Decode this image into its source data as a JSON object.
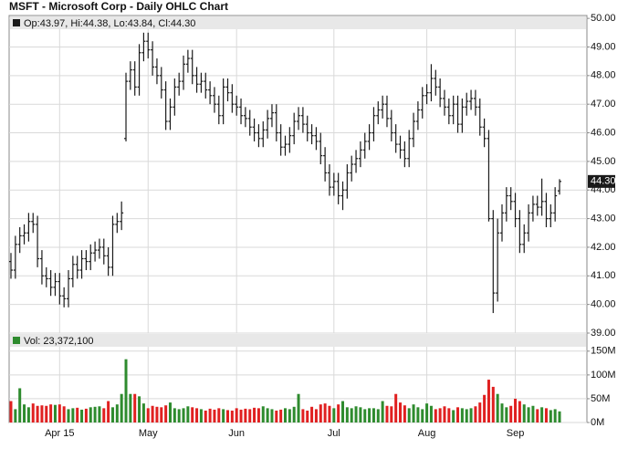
{
  "chart_data": {
    "type": "ohlc",
    "title": "MSFT - Microsoft Corp - Daily OHLC Chart",
    "info": "Op:43.97, Hi:44.38, Lo:43.84, Cl:44.30",
    "volume_info": "Vol: 23,372,100",
    "last_label": "44.30",
    "color": "#1a1a1a",
    "up_color": "#2e8b2e",
    "down_color": "#e02020",
    "grid": true,
    "categories": [
      null,
      null,
      null,
      null,
      null,
      null,
      null,
      null,
      null,
      null,
      null,
      "Apr 15",
      null,
      null,
      null,
      null,
      null,
      null,
      null,
      null,
      null,
      null,
      null,
      null,
      null,
      null,
      null,
      null,
      null,
      null,
      null,
      "May",
      null,
      null,
      null,
      null,
      null,
      null,
      null,
      null,
      null,
      null,
      null,
      null,
      null,
      null,
      null,
      null,
      null,
      null,
      null,
      "Jun",
      null,
      null,
      null,
      null,
      null,
      null,
      null,
      null,
      null,
      null,
      null,
      null,
      null,
      null,
      null,
      null,
      null,
      null,
      null,
      null,
      null,
      "Jul",
      null,
      null,
      null,
      null,
      null,
      null,
      null,
      null,
      null,
      null,
      null,
      null,
      null,
      null,
      null,
      null,
      null,
      null,
      null,
      null,
      "Aug",
      null,
      null,
      null,
      null,
      null,
      null,
      null,
      null,
      null,
      null,
      null,
      null,
      null,
      null,
      null,
      null,
      null,
      null,
      null,
      "Sep",
      null,
      null,
      null,
      null,
      null,
      null,
      null,
      null,
      null,
      null
    ],
    "open": [
      41.5,
      41.2,
      42.1,
      42.4,
      42.5,
      42.9,
      42.8,
      41.6,
      41.0,
      40.9,
      40.6,
      40.8,
      40.3,
      40.2,
      40.9,
      41.4,
      41.2,
      41.6,
      41.5,
      41.8,
      41.9,
      42.0,
      41.7,
      41.3,
      42.8,
      42.9,
      45.8,
      47.8,
      48.2,
      47.6,
      48.8,
      49.2,
      48.9,
      48.3,
      48.0,
      47.5,
      46.4,
      46.9,
      47.6,
      47.8,
      48.4,
      48.6,
      48.0,
      47.7,
      47.8,
      47.5,
      47.3,
      47.0,
      46.6,
      47.6,
      47.4,
      47.0,
      46.9,
      46.6,
      46.5,
      46.2,
      46.0,
      45.8,
      46.1,
      46.5,
      46.7,
      46.0,
      45.5,
      45.6,
      45.9,
      46.4,
      46.6,
      46.3,
      46.0,
      45.9,
      45.7,
      45.2,
      44.6,
      44.1,
      44.3,
      43.8,
      44.0,
      44.6,
      44.9,
      45.1,
      45.4,
      45.7,
      46.0,
      46.6,
      46.8,
      47.0,
      46.5,
      46.0,
      45.6,
      45.4,
      45.1,
      45.8,
      46.4,
      46.8,
      47.3,
      47.4,
      47.9,
      47.6,
      47.2,
      46.9,
      46.6,
      47.0,
      46.3,
      46.9,
      47.1,
      47.2,
      46.9,
      46.2,
      45.8,
      43.0,
      40.4,
      42.5,
      43.2,
      43.8,
      43.6,
      43.0,
      42.1,
      42.5,
      43.2,
      43.5,
      43.4,
      43.6,
      43.0,
      43.2,
      43.97
    ],
    "high": [
      41.8,
      42.4,
      42.7,
      42.8,
      43.2,
      43.2,
      43.1,
      41.9,
      41.3,
      41.2,
      41.1,
      41.1,
      40.6,
      41.2,
      41.7,
      41.7,
      41.9,
      41.9,
      42.1,
      42.2,
      42.3,
      42.3,
      42.0,
      43.1,
      43.2,
      43.6,
      48.1,
      48.5,
      48.5,
      49.1,
      49.5,
      49.5,
      49.2,
      48.6,
      48.3,
      47.8,
      47.2,
      47.9,
      48.1,
      48.7,
      48.9,
      48.9,
      48.3,
      48.1,
      48.1,
      47.8,
      47.6,
      47.3,
      47.9,
      47.9,
      47.7,
      47.3,
      47.2,
      46.9,
      46.8,
      46.5,
      46.3,
      46.4,
      46.8,
      47.0,
      47.0,
      46.3,
      45.9,
      46.2,
      46.7,
      46.9,
      46.9,
      46.6,
      46.3,
      46.2,
      46.0,
      45.5,
      44.9,
      44.6,
      44.6,
      44.3,
      44.9,
      45.2,
      45.4,
      45.7,
      46.0,
      46.3,
      46.9,
      47.1,
      47.3,
      47.3,
      46.8,
      46.3,
      45.9,
      45.7,
      46.1,
      46.7,
      47.1,
      47.6,
      47.7,
      48.4,
      48.2,
      47.9,
      47.5,
      47.2,
      47.3,
      47.3,
      47.2,
      47.4,
      47.5,
      47.5,
      47.2,
      46.5,
      46.1,
      43.3,
      43.0,
      43.5,
      44.1,
      44.1,
      43.9,
      43.3,
      42.8,
      43.5,
      43.8,
      43.8,
      44.4,
      43.9,
      43.5,
      44.1,
      44.38
    ],
    "low": [
      40.9,
      40.9,
      41.8,
      42.1,
      42.2,
      42.5,
      41.3,
      40.7,
      40.6,
      40.3,
      40.3,
      40.0,
      39.9,
      39.9,
      40.6,
      40.9,
      40.9,
      41.2,
      41.2,
      41.5,
      41.6,
      41.4,
      41.0,
      41.0,
      42.5,
      42.6,
      45.7,
      47.5,
      47.3,
      47.3,
      48.5,
      48.6,
      48.0,
      47.7,
      47.2,
      46.1,
      46.1,
      46.6,
      47.3,
      47.5,
      48.1,
      47.7,
      47.4,
      47.4,
      47.2,
      47.0,
      46.7,
      46.3,
      46.3,
      47.1,
      46.7,
      46.6,
      46.3,
      46.2,
      45.9,
      45.7,
      45.5,
      45.5,
      45.8,
      46.2,
      45.7,
      45.2,
      45.2,
      45.3,
      45.6,
      46.1,
      46.0,
      45.7,
      45.6,
      45.4,
      44.9,
      44.3,
      43.8,
      43.8,
      43.5,
      43.3,
      43.7,
      44.3,
      44.6,
      44.8,
      45.1,
      45.4,
      45.7,
      46.3,
      46.5,
      46.2,
      45.7,
      45.3,
      45.1,
      44.8,
      44.8,
      45.5,
      46.1,
      46.5,
      47.0,
      47.1,
      47.3,
      46.9,
      46.6,
      46.3,
      46.3,
      46.0,
      46.0,
      46.6,
      46.8,
      46.6,
      45.9,
      45.5,
      42.9,
      39.7,
      40.1,
      42.2,
      42.9,
      43.3,
      42.7,
      41.8,
      41.8,
      42.2,
      42.9,
      43.1,
      43.1,
      42.7,
      42.7,
      42.9,
      43.84
    ],
    "close": [
      41.2,
      42.1,
      42.4,
      42.5,
      42.9,
      42.8,
      41.6,
      41.0,
      40.9,
      40.6,
      40.8,
      40.3,
      40.2,
      40.9,
      41.4,
      41.2,
      41.6,
      41.5,
      41.8,
      41.9,
      42.0,
      41.7,
      41.3,
      42.8,
      42.9,
      43.2,
      47.8,
      48.2,
      47.6,
      48.8,
      49.2,
      48.9,
      48.3,
      48.0,
      47.5,
      46.4,
      46.9,
      47.6,
      47.8,
      48.4,
      48.6,
      48.0,
      47.7,
      47.8,
      47.5,
      47.3,
      47.0,
      46.6,
      47.6,
      47.4,
      47.0,
      46.9,
      46.6,
      46.5,
      46.2,
      46.0,
      45.8,
      46.1,
      46.5,
      46.7,
      46.0,
      45.5,
      45.6,
      45.9,
      46.4,
      46.6,
      46.3,
      46.0,
      45.9,
      45.7,
      45.2,
      44.6,
      44.1,
      44.3,
      43.8,
      44.0,
      44.6,
      44.9,
      45.1,
      45.4,
      45.7,
      46.0,
      46.6,
      46.8,
      47.0,
      46.5,
      46.0,
      45.6,
      45.4,
      45.1,
      45.8,
      46.4,
      46.8,
      47.3,
      47.4,
      47.9,
      47.6,
      47.2,
      46.9,
      46.6,
      47.0,
      46.3,
      46.9,
      47.1,
      47.2,
      46.9,
      46.2,
      45.8,
      43.0,
      40.4,
      42.5,
      43.2,
      43.8,
      43.6,
      43.0,
      42.1,
      42.5,
      43.2,
      43.5,
      43.4,
      43.6,
      43.0,
      43.2,
      43.8,
      44.3
    ],
    "volume": [
      45,
      28,
      72,
      38,
      32,
      40,
      35,
      36,
      35,
      38,
      37,
      38,
      34,
      28,
      30,
      31,
      27,
      29,
      32,
      33,
      34,
      30,
      45,
      32,
      38,
      60,
      133,
      60,
      60,
      55,
      40,
      30,
      35,
      33,
      32,
      36,
      42,
      30,
      28,
      30,
      34,
      32,
      30,
      28,
      25,
      29,
      27,
      30,
      28,
      26,
      25,
      30,
      27,
      29,
      28,
      31,
      30,
      34,
      30,
      28,
      25,
      27,
      30,
      28,
      33,
      60,
      28,
      25,
      33,
      28,
      38,
      40,
      35,
      30,
      38,
      45,
      32,
      30,
      34,
      32,
      28,
      30,
      30,
      28,
      45,
      35,
      34,
      60,
      42,
      36,
      30,
      38,
      32,
      28,
      40,
      35,
      28,
      30,
      34,
      30,
      26,
      32,
      30,
      28,
      30,
      34,
      42,
      58,
      90,
      75,
      60,
      40,
      32,
      35,
      50,
      45,
      38,
      32,
      35,
      28,
      32,
      30,
      26,
      28,
      23.3721
    ],
    "ylim": [
      39,
      50.1
    ],
    "yticks": [
      {
        "value": 39,
        "label": "39.00"
      },
      {
        "value": 40,
        "label": "40.00"
      },
      {
        "value": 41,
        "label": "41.00"
      },
      {
        "value": 42,
        "label": "42.00"
      },
      {
        "value": 43,
        "label": "43.00"
      },
      {
        "value": 44,
        "label": "44.00"
      },
      {
        "value": 45,
        "label": "45.00"
      },
      {
        "value": 46,
        "label": "46.00"
      },
      {
        "value": 47,
        "label": "47.00"
      },
      {
        "value": 48,
        "label": "48.00"
      },
      {
        "value": 49,
        "label": "49.00"
      },
      {
        "value": 50,
        "label": "50.00"
      }
    ],
    "volume_ylim": [
      0,
      188
    ],
    "volume_yticks": [
      {
        "value": 0,
        "label": "0M"
      },
      {
        "value": 50,
        "label": "50M"
      },
      {
        "value": 100,
        "label": "100M"
      },
      {
        "value": 150,
        "label": "150M"
      }
    ]
  }
}
